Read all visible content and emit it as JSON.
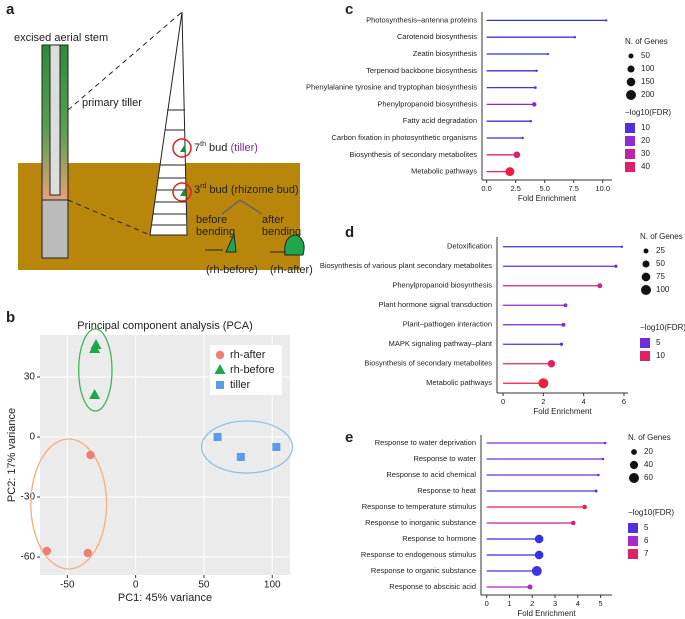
{
  "diagram": {
    "panel": "a",
    "stem_label": "excised aerial stem",
    "tiller_label": "primary tiller",
    "bud7": {
      "num": "7",
      "sup": "th",
      "text": " bud",
      "tag": "(tiller)"
    },
    "bud3": {
      "num": "3",
      "sup": "rd",
      "text": " bud (rhizome bud)"
    },
    "before": [
      "before",
      "bending"
    ],
    "after": [
      "after",
      "bending"
    ],
    "before_tag": "(rh-before)",
    "after_tag": "(rh-after)"
  },
  "chart_data": [
    {
      "type": "scatter",
      "panel": "b",
      "title": "Principal component analysis (PCA)",
      "xlabel": "PC1: 45% variance",
      "ylabel": "PC2: 17% variance",
      "xlim": [
        -70,
        113
      ],
      "ylim": [
        -69,
        51
      ],
      "xticks": [
        -50,
        0,
        50,
        100
      ],
      "yticks": [
        -60,
        -30,
        0,
        30
      ],
      "grid": true,
      "legend": "upper right",
      "series": [
        {
          "name": "rh-after",
          "color": "#f07f72",
          "marker": "circle",
          "ellipse_color": "#f4b07c",
          "x": [
            -33,
            -65,
            -35
          ],
          "values": [
            -9,
            -57,
            -58
          ]
        },
        {
          "name": "rh-before",
          "color": "#1fa84a",
          "marker": "triangle",
          "ellipse_color": "#3cb656",
          "x": [
            -30,
            -29,
            -30
          ],
          "values": [
            44,
            46,
            21
          ]
        },
        {
          "name": "tiller",
          "color": "#5b9be8",
          "marker": "square",
          "ellipse_color": "#8cc2e6",
          "x": [
            60,
            77,
            103
          ],
          "values": [
            0,
            -10,
            -5
          ]
        }
      ]
    },
    {
      "type": "lollipop",
      "panel": "c",
      "xlabel": "Fold Enrichment",
      "categories": [
        "Photosynthesis–antenna proteins",
        "Carotenoid biosynthesis",
        "Zeatin biosynthesis",
        "Terpenoid backbone biosynthesis",
        "Phenylalanine tyrosine and tryptophan biosynthesis",
        "Phenylpropanoid biosynthesis",
        "Fatty acid degradation",
        "Carbon fixation in photosynthetic organisms",
        "Biosynthesis of secondary metabolites",
        "Metabolic pathways"
      ],
      "values": [
        10.3,
        7.6,
        5.3,
        4.3,
        4.2,
        4.1,
        3.8,
        3.1,
        2.6,
        2.0
      ],
      "sizes": [
        10,
        12,
        8,
        12,
        14,
        40,
        12,
        12,
        90,
        160
      ],
      "fdr": [
        5,
        8,
        4,
        6,
        7,
        18,
        6,
        5,
        38,
        45
      ],
      "xlim": [
        -0.4,
        10.8
      ],
      "xticks": [
        {
          "value": 0,
          "label": "0.0"
        },
        2.5,
        {
          "value": 5,
          "label": "5.0"
        },
        7.5,
        {
          "value": 10,
          "label": "10.0"
        }
      ],
      "size_title": "N. of Genes",
      "size_legend": [
        50,
        100,
        150,
        200
      ],
      "color_title": "−log10(FDR)",
      "color_legend": [
        10,
        20,
        30,
        40
      ]
    },
    {
      "type": "lollipop",
      "panel": "d",
      "xlabel": "Fold Enrichment",
      "categories": [
        "Detoxification",
        "Biosynthesis of various plant secondary metabolites",
        "Phenylpropanoid biosynthesis",
        "Plant hormone signal transduction",
        "Plant–pathogen interaction",
        "MAPK signaling pathway–plant",
        "Biosynthesis of secondary metabolites",
        "Metabolic pathways"
      ],
      "values": [
        5.9,
        5.6,
        4.8,
        3.1,
        3.0,
        2.9,
        2.4,
        2.0
      ],
      "sizes": [
        5,
        10,
        25,
        15,
        15,
        10,
        55,
        100
      ],
      "fdr": [
        3,
        5,
        9,
        6,
        5,
        4,
        10,
        11
      ],
      "xlim": [
        -0.3,
        6.2
      ],
      "xticks": [
        0,
        2,
        4,
        6
      ],
      "size_title": "N. of Genes",
      "size_legend": [
        25,
        50,
        75,
        100
      ],
      "color_title": "−log10(FDR)",
      "color_legend": [
        5,
        10
      ]
    },
    {
      "type": "lollipop",
      "panel": "e",
      "xlabel": "Fold Enrichment",
      "categories": [
        "Response to water deprivation",
        "Response to water",
        "Response to acid chemical",
        "Response to heat",
        "Response to temperature stimulus",
        "Response to inorganic substance",
        "Response to hormone",
        "Response to endogenous stimulus",
        "Response to organic substance",
        "Response to abscisic acid"
      ],
      "values": [
        5.2,
        5.1,
        4.9,
        4.8,
        4.3,
        3.8,
        2.3,
        2.3,
        2.2,
        1.9
      ],
      "sizes": [
        4,
        4,
        4,
        5,
        12,
        12,
        45,
        45,
        60,
        15
      ],
      "fdr": [
        5.4,
        5.3,
        5.3,
        5.2,
        7.4,
        6.6,
        4.6,
        4.6,
        4.8,
        6.0
      ],
      "xlim": [
        -0.25,
        5.5
      ],
      "xticks": [
        0,
        1,
        2,
        3,
        4,
        5
      ],
      "size_title": "N. of Genes",
      "size_legend": [
        20,
        40,
        60
      ],
      "color_title": "−log10(FDR)",
      "color_legend": [
        5,
        6,
        7
      ]
    }
  ]
}
